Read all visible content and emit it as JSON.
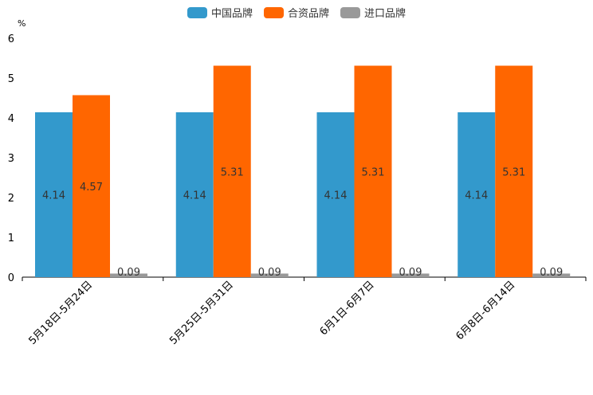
{
  "chart_data": {
    "type": "bar",
    "ylabel": "%",
    "ylim": [
      0,
      6
    ],
    "yticks": [
      "0",
      "1",
      "2",
      "3",
      "4",
      "5",
      "6"
    ],
    "categories": [
      "5月18日-5月24日",
      "5月25日-5月31日",
      "6月1日-6月7日",
      "6月8日-6月14日"
    ],
    "series": [
      {
        "name": "中国品牌",
        "color": "#3399cc",
        "values": [
          4.14,
          4.14,
          4.14,
          4.14
        ],
        "labels": [
          "4.14",
          "4.14",
          "4.14",
          "4.14"
        ]
      },
      {
        "name": "合资品牌",
        "color": "#ff6600",
        "values": [
          4.57,
          5.31,
          5.31,
          5.31
        ],
        "labels": [
          "4.57",
          "5.31",
          "5.31",
          "5.31"
        ]
      },
      {
        "name": "进口品牌",
        "color": "#999999",
        "values": [
          0.09,
          0.09,
          0.09,
          0.09
        ],
        "labels": [
          "0.09",
          "0.09",
          "0.09",
          "0.09"
        ]
      }
    ],
    "legend_position": "top-center"
  }
}
